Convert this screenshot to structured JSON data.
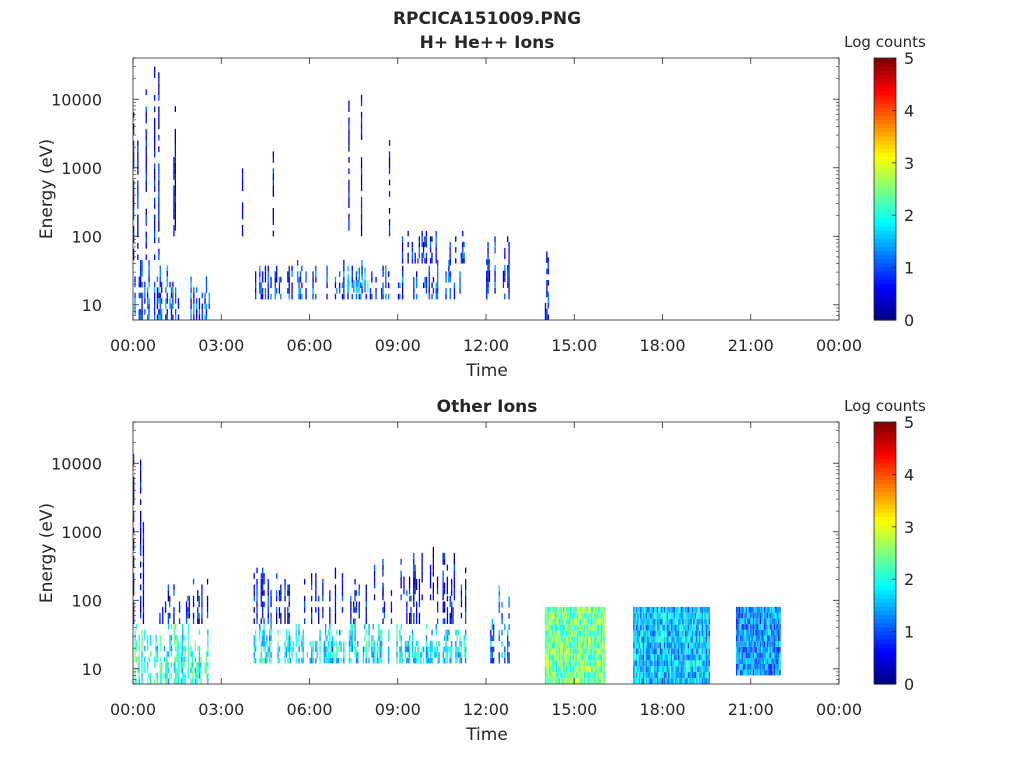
{
  "figure": {
    "title": "RPCICA151009.PNG",
    "colormap_stops": [
      "#00007f",
      "#0000ff",
      "#007fff",
      "#00ffff",
      "#7fff7f",
      "#ffff00",
      "#ff7f00",
      "#ff0000",
      "#7f0000"
    ]
  },
  "chart_data": [
    {
      "type": "heatmap",
      "title": "H+ He++ Ions",
      "xlabel": "Time",
      "ylabel": "Energy (eV)",
      "x_ticks": [
        "00:00",
        "03:00",
        "06:00",
        "09:00",
        "12:00",
        "15:00",
        "18:00",
        "21:00",
        "00:00"
      ],
      "xlim_hours": [
        0,
        24
      ],
      "y_scale": "log",
      "y_ticks": [
        10,
        100,
        1000,
        10000
      ],
      "y_tick_labels": [
        "10",
        "100",
        "1000",
        "10000"
      ],
      "ylim": [
        6,
        40000
      ],
      "colorbar": {
        "label": "Log counts",
        "range": [
          0,
          5
        ],
        "ticks": [
          "0",
          "1",
          "2",
          "3",
          "4",
          "5"
        ]
      },
      "regions": [
        {
          "t_start": 0.0,
          "t_end": 2.6,
          "e_min": 6,
          "e_max": 45,
          "log_counts": 1.0,
          "density": 0.55
        },
        {
          "t_start": 0.0,
          "t_end": 0.9,
          "e_min": 45,
          "e_max": 30000,
          "log_counts": 0.5,
          "density": 0.18
        },
        {
          "t_start": 4.1,
          "t_end": 11.3,
          "e_min": 12,
          "e_max": 45,
          "log_counts": 0.9,
          "density": 0.38
        },
        {
          "t_start": 7.2,
          "t_end": 8.0,
          "e_min": 15,
          "e_max": 35,
          "log_counts": 1.6,
          "density": 0.5
        },
        {
          "t_start": 9.0,
          "t_end": 11.3,
          "e_min": 40,
          "e_max": 120,
          "log_counts": 0.7,
          "density": 0.2
        },
        {
          "t_start": 12.0,
          "t_end": 12.8,
          "e_min": 12,
          "e_max": 100,
          "log_counts": 0.8,
          "density": 0.35
        },
        {
          "t_start": 14.0,
          "t_end": 14.1,
          "e_min": 6,
          "e_max": 60,
          "log_counts": 0.8,
          "density": 0.8
        },
        {
          "t_start": 0.8,
          "t_end": 11.5,
          "e_min": 100,
          "e_max": 30000,
          "log_counts": 0.4,
          "density": 0.015
        }
      ]
    },
    {
      "type": "heatmap",
      "title": "Other Ions",
      "xlabel": "Time",
      "ylabel": "Energy (eV)",
      "x_ticks": [
        "00:00",
        "03:00",
        "06:00",
        "09:00",
        "12:00",
        "15:00",
        "18:00",
        "21:00",
        "00:00"
      ],
      "xlim_hours": [
        0,
        24
      ],
      "y_scale": "log",
      "y_ticks": [
        10,
        100,
        1000,
        10000
      ],
      "y_tick_labels": [
        "10",
        "100",
        "1000",
        "10000"
      ],
      "ylim": [
        6,
        40000
      ],
      "colorbar": {
        "label": "Log counts",
        "range": [
          0,
          5
        ],
        "ticks": [
          "0",
          "1",
          "2",
          "3",
          "4",
          "5"
        ]
      },
      "regions": [
        {
          "t_start": 0.0,
          "t_end": 2.6,
          "e_min": 6,
          "e_max": 45,
          "log_counts": 2.0,
          "density": 0.75
        },
        {
          "t_start": 0.0,
          "t_end": 0.8,
          "e_min": 45,
          "e_max": 20000,
          "log_counts": 0.4,
          "density": 0.25
        },
        {
          "t_start": 0.8,
          "t_end": 2.6,
          "e_min": 45,
          "e_max": 300,
          "log_counts": 0.6,
          "density": 0.3
        },
        {
          "t_start": 4.1,
          "t_end": 11.3,
          "e_min": 12,
          "e_max": 45,
          "log_counts": 1.8,
          "density": 0.7
        },
        {
          "t_start": 4.1,
          "t_end": 11.3,
          "e_min": 45,
          "e_max": 300,
          "log_counts": 0.6,
          "density": 0.3
        },
        {
          "t_start": 8.0,
          "t_end": 11.3,
          "e_min": 100,
          "e_max": 600,
          "log_counts": 0.5,
          "density": 0.2
        },
        {
          "t_start": 12.0,
          "t_end": 12.8,
          "e_min": 12,
          "e_max": 200,
          "log_counts": 1.2,
          "density": 0.55
        },
        {
          "t_start": 14.0,
          "t_end": 16.0,
          "e_min": 6,
          "e_max": 80,
          "log_counts": 2.4,
          "density": 1.0
        },
        {
          "t_start": 17.0,
          "t_end": 19.6,
          "e_min": 6,
          "e_max": 80,
          "log_counts": 1.6,
          "density": 1.0
        },
        {
          "t_start": 20.5,
          "t_end": 22.0,
          "e_min": 8,
          "e_max": 80,
          "log_counts": 1.3,
          "density": 0.95
        }
      ]
    }
  ]
}
